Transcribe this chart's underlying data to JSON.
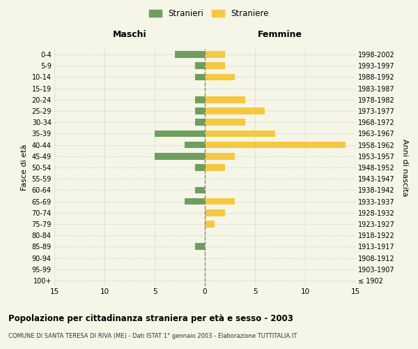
{
  "age_groups": [
    "100+",
    "95-99",
    "90-94",
    "85-89",
    "80-84",
    "75-79",
    "70-74",
    "65-69",
    "60-64",
    "55-59",
    "50-54",
    "45-49",
    "40-44",
    "35-39",
    "30-34",
    "25-29",
    "20-24",
    "15-19",
    "10-14",
    "5-9",
    "0-4"
  ],
  "birth_years": [
    "≤ 1902",
    "1903-1907",
    "1908-1912",
    "1913-1917",
    "1918-1922",
    "1923-1927",
    "1928-1932",
    "1933-1937",
    "1938-1942",
    "1943-1947",
    "1948-1952",
    "1953-1957",
    "1958-1962",
    "1963-1967",
    "1968-1972",
    "1973-1977",
    "1978-1982",
    "1983-1987",
    "1988-1992",
    "1993-1997",
    "1998-2002"
  ],
  "maschi_stranieri": [
    0,
    0,
    0,
    1,
    0,
    0,
    0,
    2,
    1,
    0,
    1,
    5,
    2,
    5,
    1,
    1,
    1,
    0,
    1,
    1,
    3
  ],
  "femmine_straniere": [
    0,
    0,
    0,
    0,
    0,
    1,
    2,
    3,
    0,
    0,
    2,
    3,
    14,
    7,
    4,
    6,
    4,
    0,
    3,
    2,
    2
  ],
  "color_maschi": "#6e9e5e",
  "color_femmine": "#f5c842",
  "xlim": 15,
  "title": "Popolazione per cittadinanza straniera per età e sesso - 2003",
  "subtitle": "COMUNE DI SANTA TERESA DI RIVA (ME) - Dati ISTAT 1° gennaio 2003 - Elaborazione TUTTITALIA.IT",
  "ylabel_left": "Fasce di età",
  "ylabel_right": "Anni di nascita",
  "legend_maschi": "Stranieri",
  "legend_femmine": "Straniere",
  "background_color": "#f5f5e8",
  "grid_color": "#ccccbb"
}
